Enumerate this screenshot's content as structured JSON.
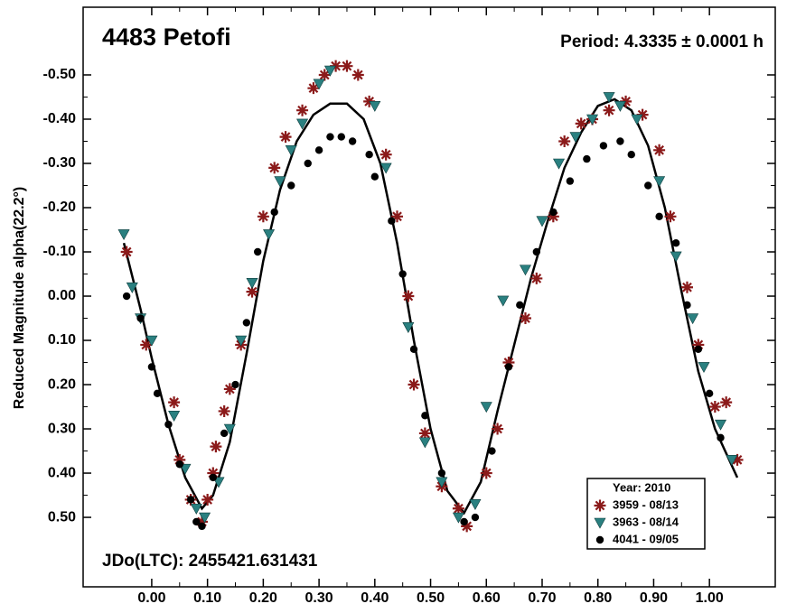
{
  "chart_data": {
    "type": "scatter",
    "title": "4483 Petofi",
    "subtitle": "Period: 4.3335 ± 0.0001 h",
    "annotation": "JDo(LTC): 2455421.631431",
    "y_label": "Reduced Magnitude alpha(22.2°)",
    "legend_title": "Year: 2010",
    "legend": "lower right",
    "xlim": [
      -0.123,
      1.118
    ],
    "ylim": [
      0.657,
      -0.653
    ],
    "xticks": [
      {
        "value": 0,
        "label": "0.00"
      },
      {
        "value": 0.1,
        "label": "0.10"
      },
      {
        "value": 0.2,
        "label": "0.20"
      },
      {
        "value": 0.3,
        "label": "0.30"
      },
      {
        "value": 0.4,
        "label": "0.40"
      },
      {
        "value": 0.5,
        "label": "0.50"
      },
      {
        "value": 0.6,
        "label": "0.60"
      },
      {
        "value": 0.7,
        "label": "0.70"
      },
      {
        "value": 0.8,
        "label": "0.80"
      },
      {
        "value": 0.9,
        "label": "0.90"
      },
      {
        "value": 1,
        "label": "1.00"
      }
    ],
    "yticks": [
      {
        "value": -0.5,
        "label": "-0.50"
      },
      {
        "value": -0.4,
        "label": "-0.40"
      },
      {
        "value": -0.3,
        "label": "-0.30"
      },
      {
        "value": -0.2,
        "label": "-0.20"
      },
      {
        "value": -0.1,
        "label": "-0.10"
      },
      {
        "value": 0,
        "label": "0.00"
      },
      {
        "value": 0.1,
        "label": "0.10"
      },
      {
        "value": 0.2,
        "label": "0.20"
      },
      {
        "value": 0.3,
        "label": "0.30"
      },
      {
        "value": 0.4,
        "label": "0.40"
      },
      {
        "value": 0.5,
        "label": "0.50"
      }
    ],
    "fit": {
      "color": "#000000",
      "x": [
        -0.05,
        -0.02,
        0.0,
        0.03,
        0.06,
        0.09,
        0.11,
        0.14,
        0.17,
        0.2,
        0.23,
        0.26,
        0.29,
        0.32,
        0.35,
        0.38,
        0.41,
        0.44,
        0.47,
        0.5,
        0.53,
        0.56,
        0.59,
        0.62,
        0.65,
        0.68,
        0.71,
        0.74,
        0.77,
        0.8,
        0.83,
        0.86,
        0.89,
        0.92,
        0.95,
        0.98,
        1.01,
        1.05
      ],
      "values": [
        -0.12,
        0.03,
        0.14,
        0.29,
        0.41,
        0.48,
        0.45,
        0.33,
        0.13,
        -0.08,
        -0.24,
        -0.35,
        -0.41,
        -0.435,
        -0.435,
        -0.4,
        -0.3,
        -0.12,
        0.1,
        0.3,
        0.44,
        0.49,
        0.42,
        0.26,
        0.11,
        -0.04,
        -0.17,
        -0.29,
        -0.37,
        -0.43,
        -0.445,
        -0.42,
        -0.34,
        -0.2,
        -0.01,
        0.17,
        0.3,
        0.41
      ]
    },
    "series": [
      {
        "name": "3959 - 08/13",
        "color": "#8b1a1a",
        "marker": "asterisk",
        "x": [
          -0.045,
          -0.01,
          0.04,
          0.05,
          0.07,
          0.09,
          0.1,
          0.11,
          0.115,
          0.13,
          0.14,
          0.16,
          0.18,
          0.2,
          0.22,
          0.24,
          0.27,
          0.29,
          0.31,
          0.33,
          0.35,
          0.37,
          0.39,
          0.42,
          0.44,
          0.46,
          0.47,
          0.49,
          0.52,
          0.55,
          0.565,
          0.6,
          0.62,
          0.64,
          0.67,
          0.69,
          0.72,
          0.74,
          0.77,
          0.79,
          0.82,
          0.85,
          0.88,
          0.91,
          0.93,
          0.96,
          0.98,
          1.01,
          1.03,
          1.05
        ],
        "values": [
          -0.1,
          0.11,
          0.24,
          0.37,
          0.46,
          0.51,
          0.46,
          0.4,
          0.34,
          0.26,
          0.21,
          0.11,
          -0.01,
          -0.18,
          -0.29,
          -0.36,
          -0.42,
          -0.47,
          -0.5,
          -0.52,
          -0.52,
          -0.5,
          -0.44,
          -0.32,
          -0.18,
          0.0,
          0.2,
          0.31,
          0.43,
          0.48,
          0.52,
          0.4,
          0.3,
          0.15,
          0.05,
          -0.04,
          -0.18,
          -0.35,
          -0.39,
          -0.4,
          -0.42,
          -0.44,
          -0.41,
          -0.33,
          -0.18,
          -0.02,
          0.11,
          0.25,
          0.24,
          0.37
        ]
      },
      {
        "name": "3963 - 08/14",
        "color": "#2a8080",
        "marker": "triangle",
        "x": [
          -0.05,
          -0.035,
          -0.02,
          0.0,
          0.04,
          0.06,
          0.08,
          0.095,
          0.12,
          0.14,
          0.16,
          0.18,
          0.21,
          0.23,
          0.25,
          0.27,
          0.3,
          0.32,
          0.4,
          0.42,
          0.46,
          0.49,
          0.52,
          0.55,
          0.58,
          0.6,
          0.63,
          0.67,
          0.7,
          0.73,
          0.76,
          0.79,
          0.82,
          0.84,
          0.87,
          0.91,
          0.94,
          0.97,
          0.99,
          1.02,
          1.04
        ],
        "values": [
          -0.14,
          -0.02,
          0.05,
          0.1,
          0.27,
          0.39,
          0.48,
          0.5,
          0.42,
          0.3,
          0.1,
          -0.03,
          -0.14,
          -0.26,
          -0.33,
          -0.39,
          -0.48,
          -0.51,
          -0.43,
          -0.29,
          0.07,
          0.33,
          0.42,
          0.5,
          0.47,
          0.25,
          0.01,
          -0.06,
          -0.17,
          -0.3,
          -0.36,
          -0.4,
          -0.45,
          -0.43,
          -0.4,
          -0.26,
          -0.09,
          0.05,
          0.16,
          0.29,
          0.37
        ]
      },
      {
        "name": "4041 - 09/05",
        "color": "#000000",
        "marker": "dot",
        "x": [
          -0.045,
          -0.02,
          0.0,
          0.01,
          0.03,
          0.05,
          0.07,
          0.08,
          0.09,
          0.11,
          0.13,
          0.15,
          0.17,
          0.19,
          0.22,
          0.25,
          0.28,
          0.3,
          0.32,
          0.34,
          0.36,
          0.39,
          0.4,
          0.43,
          0.45,
          0.47,
          0.49,
          0.52,
          0.56,
          0.58,
          0.61,
          0.64,
          0.66,
          0.69,
          0.72,
          0.75,
          0.78,
          0.81,
          0.84,
          0.86,
          0.89,
          0.91,
          0.94,
          0.96,
          0.98,
          1.0,
          1.02
        ],
        "values": [
          0.0,
          0.05,
          0.16,
          0.22,
          0.29,
          0.38,
          0.46,
          0.51,
          0.52,
          0.41,
          0.31,
          0.2,
          0.06,
          -0.1,
          -0.19,
          -0.25,
          -0.3,
          -0.33,
          -0.36,
          -0.36,
          -0.35,
          -0.32,
          -0.27,
          -0.17,
          -0.05,
          0.12,
          0.27,
          0.4,
          0.51,
          0.5,
          0.35,
          0.16,
          0.02,
          -0.1,
          -0.19,
          -0.26,
          -0.31,
          -0.34,
          -0.35,
          -0.32,
          -0.25,
          -0.18,
          -0.12,
          0.02,
          0.12,
          0.22,
          0.32
        ]
      }
    ]
  }
}
